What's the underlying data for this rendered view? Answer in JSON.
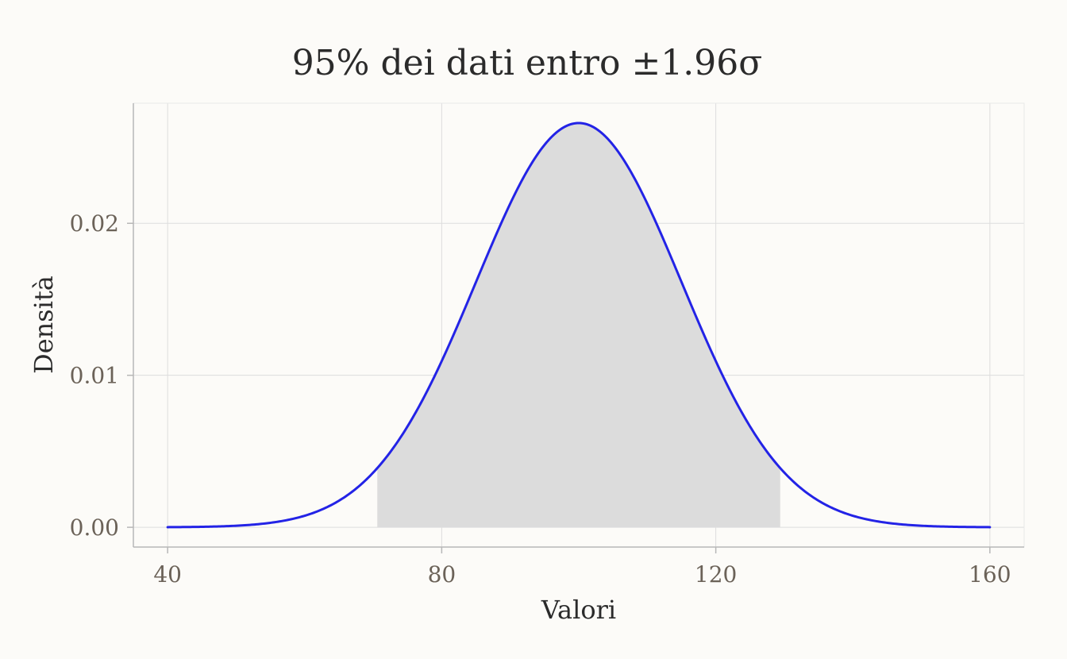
{
  "chart_data": {
    "type": "area",
    "title": "95% dei dati entro ±1.96σ",
    "xlabel": "Valori",
    "ylabel": "Densità",
    "xlim": [
      35,
      165
    ],
    "ylim": [
      -0.0013,
      0.0279
    ],
    "x_ticks": [
      40,
      80,
      120,
      160
    ],
    "x_tick_labels": [
      "40",
      "80",
      "120",
      "160"
    ],
    "y_ticks": [
      0,
      0.01,
      0.02
    ],
    "y_tick_labels": [
      "0.00",
      "0.01",
      "0.02"
    ],
    "grid": true,
    "distribution": {
      "mean": 100,
      "sd": 15,
      "x_range": [
        40,
        160
      ]
    },
    "shaded_interval": [
      70.6,
      129.4
    ],
    "colors": {
      "line": "#2323e6",
      "shade": "#dcdcdc",
      "background": "#fcfbf8"
    }
  }
}
